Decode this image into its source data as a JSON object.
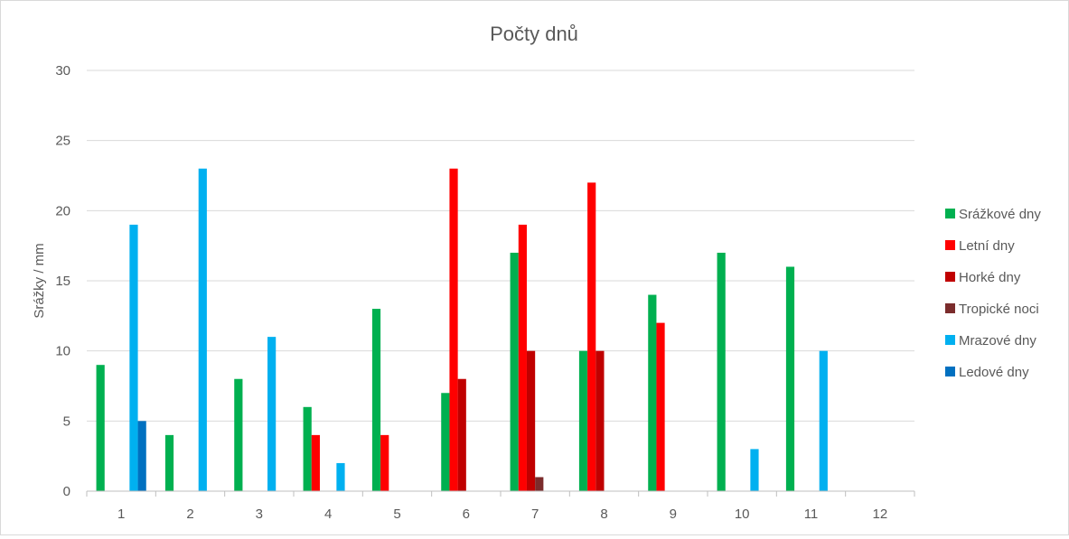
{
  "chart_data": {
    "type": "bar",
    "title": "Počty dnů",
    "xlabel": "",
    "ylabel": "Srážky / mm",
    "ylim": [
      0,
      30
    ],
    "yticks": [
      0,
      5,
      10,
      15,
      20,
      25,
      30
    ],
    "grid": true,
    "legend_position": "right",
    "categories": [
      "1",
      "2",
      "3",
      "4",
      "5",
      "6",
      "7",
      "8",
      "9",
      "10",
      "11",
      "12"
    ],
    "series": [
      {
        "name": "Srážkové dny",
        "color": "#00b050",
        "values": [
          9,
          4,
          8,
          6,
          13,
          7,
          17,
          10,
          14,
          17,
          16,
          0
        ]
      },
      {
        "name": "Letní dny",
        "color": "#ff0000",
        "values": [
          0,
          0,
          0,
          4,
          4,
          23,
          19,
          22,
          12,
          0,
          0,
          0
        ]
      },
      {
        "name": "Horké dny",
        "color": "#c00000",
        "values": [
          0,
          0,
          0,
          0,
          0,
          8,
          10,
          10,
          0,
          0,
          0,
          0
        ]
      },
      {
        "name": "Tropické noci",
        "color": "#7b2c2c",
        "values": [
          0,
          0,
          0,
          0,
          0,
          0,
          1,
          0,
          0,
          0,
          0,
          0
        ]
      },
      {
        "name": "Mrazové dny",
        "color": "#00b0f0",
        "values": [
          19,
          23,
          11,
          2,
          0,
          0,
          0,
          0,
          0,
          3,
          10,
          0
        ]
      },
      {
        "name": "Ledové dny",
        "color": "#0070c0",
        "values": [
          5,
          0,
          0,
          0,
          0,
          0,
          0,
          0,
          0,
          0,
          0,
          0
        ]
      }
    ]
  }
}
